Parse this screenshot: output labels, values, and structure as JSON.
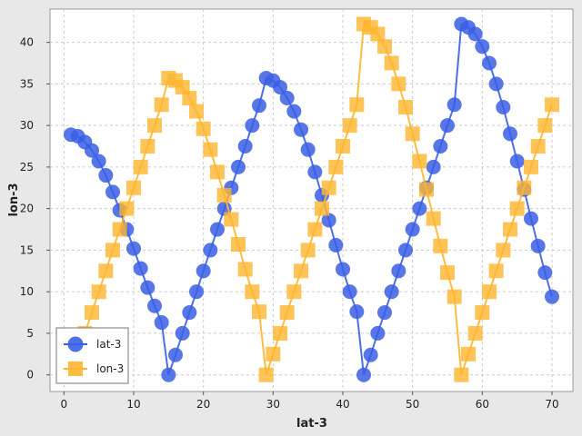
{
  "chart_data": {
    "type": "line",
    "xlabel": "lat-3",
    "ylabel": "lon-3",
    "xlim": [
      -2,
      73
    ],
    "ylim": [
      -2,
      44
    ],
    "xticks": [
      0,
      10,
      20,
      30,
      40,
      50,
      60,
      70
    ],
    "yticks": [
      0,
      5,
      10,
      15,
      20,
      25,
      30,
      35,
      40
    ],
    "grid": true,
    "legend_position": "bottom-left",
    "series": [
      {
        "name": "lat-3",
        "color": "#3a5fe5",
        "marker": "circle",
        "x": [
          1,
          2,
          3,
          4,
          5,
          6,
          7,
          8,
          9,
          10,
          11,
          12,
          13,
          14,
          15,
          16,
          17,
          18,
          19,
          20,
          21,
          22,
          23,
          24,
          25,
          26,
          27,
          28,
          29,
          30,
          31,
          32,
          33,
          34,
          35,
          36,
          37,
          38,
          39,
          40,
          41,
          42,
          43,
          44,
          45,
          46,
          47,
          48,
          49,
          50,
          51,
          52,
          53,
          54,
          55,
          56,
          57,
          58,
          59,
          60,
          61,
          62,
          63,
          64,
          65,
          66,
          67,
          68,
          69,
          70
        ],
        "y": [
          28.9,
          28.7,
          28.0,
          27.0,
          25.7,
          24.0,
          22.0,
          19.8,
          17.5,
          15.2,
          12.8,
          10.5,
          8.3,
          6.3,
          0.0,
          2.4,
          5.0,
          7.5,
          10.0,
          12.5,
          15.0,
          17.5,
          20.0,
          22.5,
          25.0,
          27.5,
          30.0,
          32.4,
          35.7,
          35.4,
          34.6,
          33.3,
          31.7,
          29.5,
          27.1,
          24.4,
          21.6,
          18.6,
          15.6,
          12.7,
          10.0,
          7.6,
          0.0,
          2.4,
          5.0,
          7.5,
          10.0,
          12.5,
          15.0,
          17.5,
          20.0,
          22.5,
          25.0,
          27.5,
          30.0,
          32.5,
          42.2,
          41.8,
          41.0,
          39.5,
          37.5,
          35.0,
          32.2,
          29.0,
          25.7,
          22.3,
          18.8,
          15.5,
          12.3,
          9.4
        ]
      },
      {
        "name": "lon-3",
        "color": "#ffb52e",
        "marker": "square",
        "x": [
          1,
          2,
          3,
          4,
          5,
          6,
          7,
          8,
          9,
          10,
          11,
          12,
          13,
          14,
          15,
          16,
          17,
          18,
          19,
          20,
          21,
          22,
          23,
          24,
          25,
          26,
          27,
          28,
          29,
          30,
          31,
          32,
          33,
          34,
          35,
          36,
          37,
          38,
          39,
          40,
          41,
          42,
          43,
          44,
          45,
          46,
          47,
          48,
          49,
          50,
          51,
          52,
          53,
          54,
          55,
          56,
          57,
          58,
          59,
          60,
          61,
          62,
          63,
          64,
          65,
          66,
          67,
          68,
          69,
          70
        ],
        "y": [
          0.0,
          2.5,
          5.0,
          7.5,
          10.0,
          12.5,
          15.0,
          17.5,
          20.0,
          22.5,
          25.0,
          27.5,
          30.0,
          32.5,
          35.7,
          35.4,
          34.6,
          33.3,
          31.7,
          29.6,
          27.1,
          24.4,
          21.6,
          18.7,
          15.7,
          12.7,
          10.0,
          7.6,
          0.0,
          2.5,
          5.0,
          7.5,
          10.0,
          12.5,
          15.0,
          17.5,
          20.0,
          22.5,
          25.0,
          27.5,
          30.0,
          32.5,
          42.2,
          41.8,
          41.0,
          39.5,
          37.5,
          35.0,
          32.2,
          29.0,
          25.7,
          22.3,
          18.8,
          15.5,
          12.3,
          9.4,
          0.0,
          2.5,
          5.0,
          7.5,
          10.0,
          12.5,
          15.0,
          17.5,
          20.0,
          22.5,
          25.0,
          27.5,
          30.0,
          32.5
        ]
      }
    ]
  }
}
